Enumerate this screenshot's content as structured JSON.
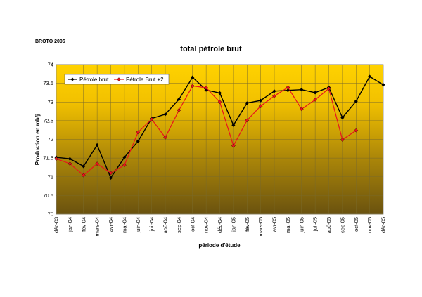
{
  "source_note": "BROTO 2006",
  "chart_data": {
    "type": "line",
    "title": "total pétrole brut",
    "xlabel": "période d'étude",
    "ylabel": "Production en mb/j",
    "ylim": [
      70,
      74
    ],
    "yticks": [
      "70",
      "70.5",
      "71",
      "71.5",
      "72",
      "72.5",
      "73",
      "73.5",
      "74"
    ],
    "grid": true,
    "legend_position": "top-left",
    "categories": [
      "déc-03",
      "jan-04",
      "fév-04",
      "mars-04",
      "avr-04",
      "mai-04",
      "juin-04",
      "juil-04",
      "aoû-04",
      "sep-04",
      "oct-04",
      "nov-04",
      "déc-04",
      "jan-05",
      "fév-05",
      "mars-05",
      "avr-05",
      "mai-05",
      "juin-05",
      "juil-05",
      "aoû-05",
      "sep-05",
      "oct-05",
      "nov-05",
      "déc-05"
    ],
    "series": [
      {
        "name": "Pétrole brut",
        "color": "#000000",
        "values": [
          71.52,
          71.48,
          71.28,
          71.85,
          70.97,
          71.52,
          71.95,
          72.56,
          72.67,
          73.07,
          73.66,
          73.32,
          73.24,
          72.38,
          72.97,
          73.04,
          73.29,
          73.31,
          73.33,
          73.25,
          73.39,
          72.58,
          73.02,
          73.68,
          73.46
        ]
      },
      {
        "name": "Pétrole Brut +2",
        "color": "#e8141c",
        "values": [
          71.48,
          71.35,
          71.04,
          71.35,
          71.1,
          71.31,
          72.19,
          72.54,
          72.05,
          72.78,
          73.43,
          73.38,
          73.0,
          71.83,
          72.51,
          72.89,
          73.16,
          73.39,
          72.81,
          73.06,
          73.36,
          71.99,
          72.24,
          null,
          null
        ]
      }
    ]
  }
}
